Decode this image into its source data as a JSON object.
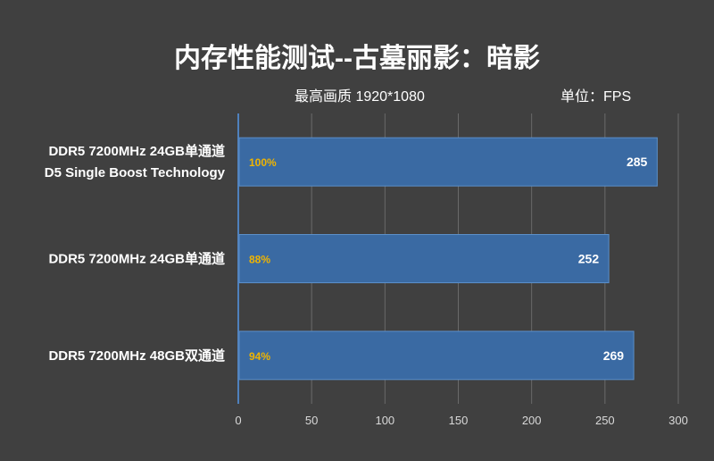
{
  "chart_data": {
    "type": "bar",
    "orientation": "horizontal",
    "title": "内存性能测试--古墓丽影：暗影",
    "subtitle": "最高画质 1920*1080",
    "unit_label": "单位：FPS",
    "categories": [
      [
        "DDR5 7200MHz 24GB单通道",
        "D5 Single Boost Technology"
      ],
      [
        "DDR5 7200MHz 24GB单通道"
      ],
      [
        "DDR5 7200MHz 48GB双通道"
      ]
    ],
    "values": [
      285,
      252,
      269
    ],
    "percent_labels": [
      "100%",
      "88%",
      "94%"
    ],
    "xlim": [
      0,
      300
    ],
    "xticks": [
      "0",
      "50",
      "100",
      "150",
      "200",
      "250",
      "300"
    ],
    "grid": true,
    "colors": {
      "bar": "#3a6aa3",
      "bar_edge": "#5b8fc9",
      "percent": "#f0b400",
      "grid": "#6a6a6a",
      "axis": "#4f81bd",
      "background": "#404040"
    }
  }
}
